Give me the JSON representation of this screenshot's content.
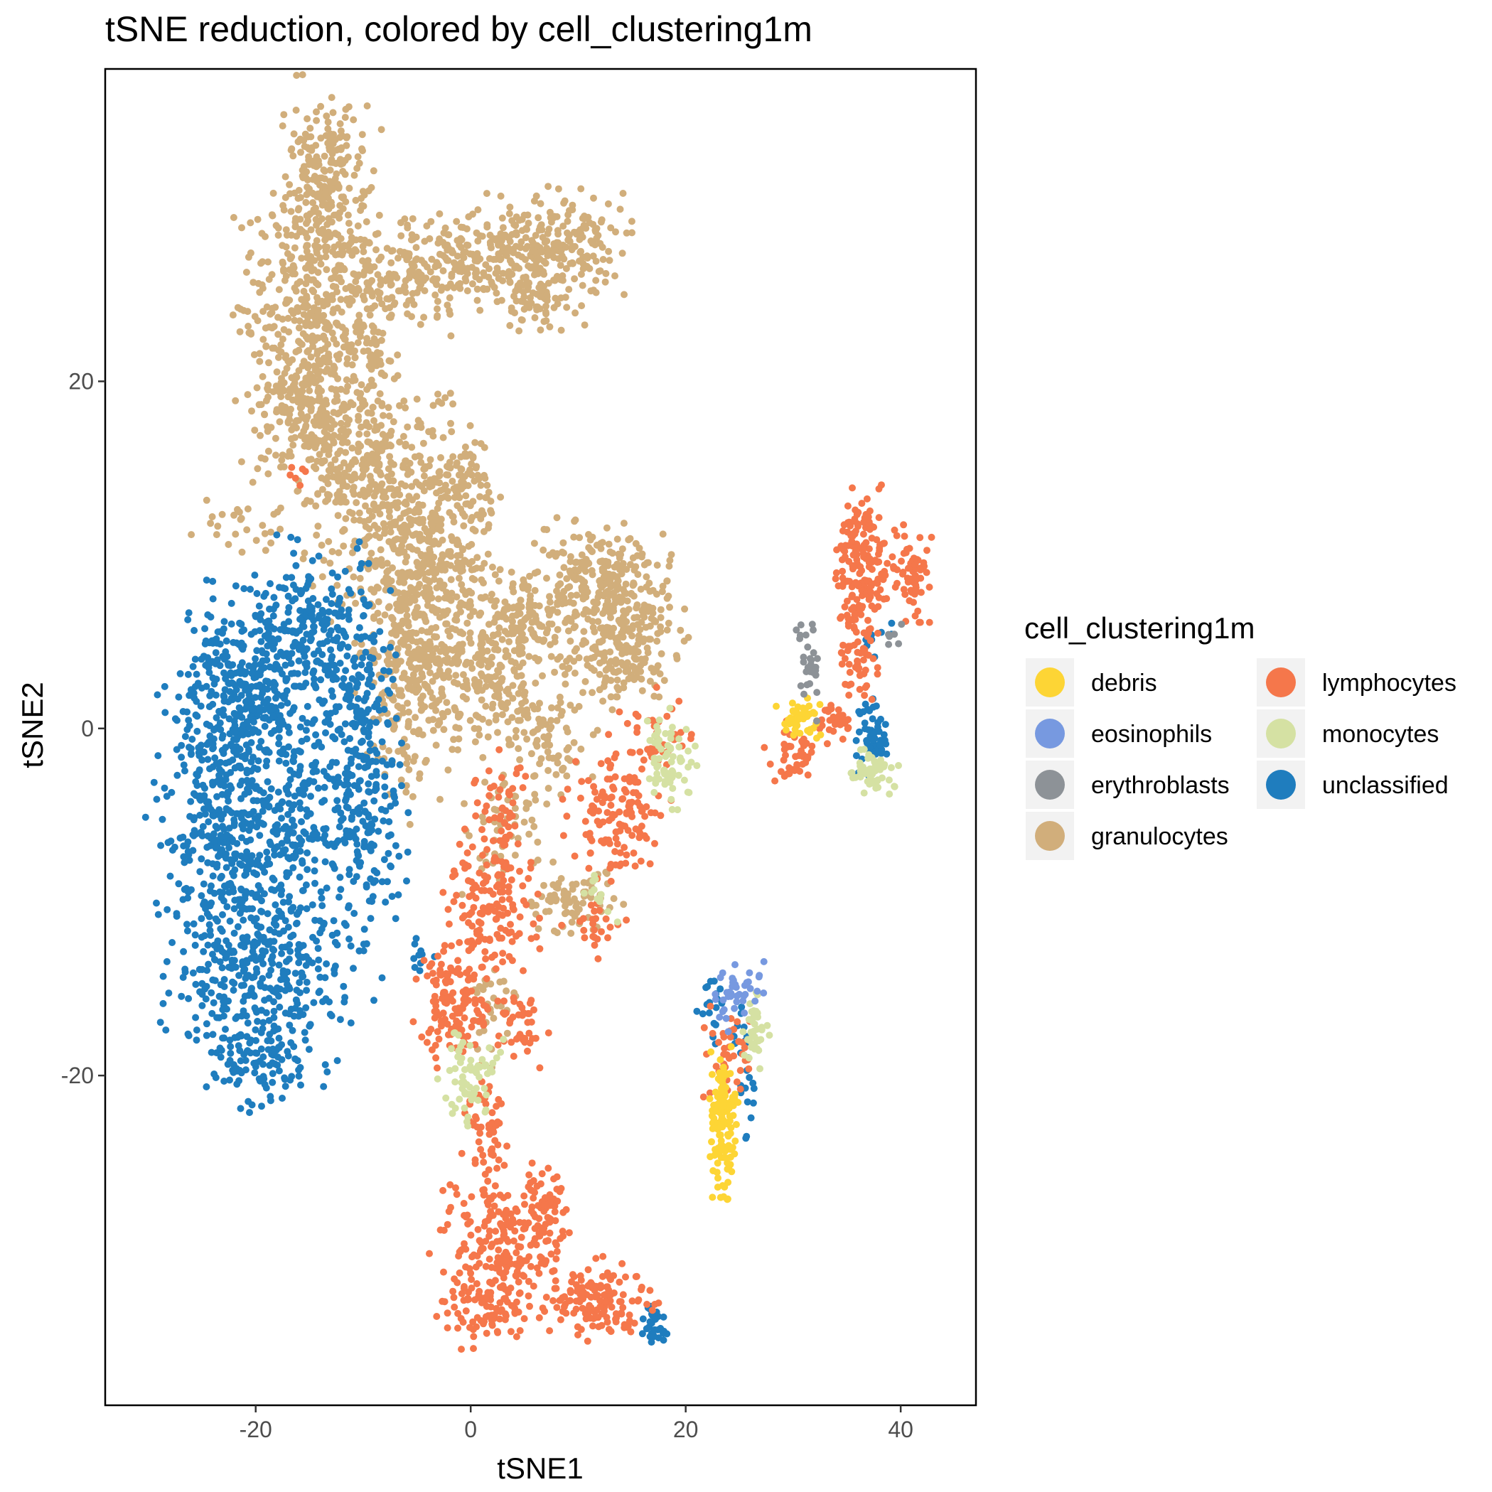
{
  "chart_data": {
    "type": "scatter",
    "title": "tSNE reduction, colored by cell_clustering1m",
    "xlabel": "tSNE1",
    "ylabel": "tSNE2",
    "xlim": [
      -34,
      47
    ],
    "ylim": [
      -39,
      38
    ],
    "x_ticks": [
      -20,
      0,
      20,
      40
    ],
    "x_tick_labels": [
      "-20",
      "0",
      "20",
      "40"
    ],
    "y_ticks": [
      -20,
      0,
      20
    ],
    "y_tick_labels": [
      "-20",
      "0",
      "20"
    ],
    "grid": false,
    "legend": {
      "title": "cell_clustering1m",
      "position": "right",
      "columns": 2,
      "entries": [
        "debris",
        "eosinophils",
        "erythroblasts",
        "granulocytes",
        "lymphocytes",
        "monocytes",
        "unclassified"
      ]
    },
    "colors": {
      "debris": "#FDD535",
      "eosinophils": "#7799E0",
      "erythroblasts": "#8D9297",
      "granulocytes": "#D1AE7B",
      "lymphocytes": "#F5774B",
      "monocytes": "#D5E1A3",
      "unclassified": "#1F7DBE"
    },
    "series": [
      {
        "name": "granulocytes",
        "clusters": [
          {
            "cx": -13.5,
            "cy": 31,
            "sx": 2.0,
            "sy": 2.6,
            "n": 260
          },
          {
            "cx": -15,
            "cy": 24,
            "sx": 3.0,
            "sy": 2.8,
            "n": 330
          },
          {
            "cx": -14,
            "cy": 18,
            "sx": 3.2,
            "sy": 2.4,
            "n": 300
          },
          {
            "cx": -9.5,
            "cy": 21,
            "sx": 1.2,
            "sy": 3.5,
            "n": 110
          },
          {
            "cx": -6,
            "cy": 26,
            "sx": 2.2,
            "sy": 1.4,
            "n": 120
          },
          {
            "cx": 1,
            "cy": 27,
            "sx": 3.0,
            "sy": 1.4,
            "n": 180
          },
          {
            "cx": 8,
            "cy": 28,
            "sx": 3.2,
            "sy": 1.5,
            "n": 200
          },
          {
            "cx": 6.5,
            "cy": 24.8,
            "sx": 2.0,
            "sy": 0.9,
            "n": 60
          },
          {
            "cx": -8,
            "cy": 13,
            "sx": 3.5,
            "sy": 2.8,
            "n": 320
          },
          {
            "cx": -1.5,
            "cy": 14,
            "sx": 1.8,
            "sy": 2.2,
            "n": 120
          },
          {
            "cx": -4,
            "cy": 7.5,
            "sx": 3.0,
            "sy": 3.0,
            "n": 330
          },
          {
            "cx": -6,
            "cy": 2,
            "sx": 2.0,
            "sy": 3.0,
            "n": 150
          },
          {
            "cx": 1,
            "cy": 3,
            "sx": 3.0,
            "sy": 2.0,
            "n": 190
          },
          {
            "cx": 5,
            "cy": 6,
            "sx": 2.5,
            "sy": 1.5,
            "n": 140
          },
          {
            "cx": 11,
            "cy": 8.5,
            "sx": 2.2,
            "sy": 1.8,
            "n": 170
          },
          {
            "cx": 15.5,
            "cy": 7,
            "sx": 2.2,
            "sy": 2.0,
            "n": 170
          },
          {
            "cx": 13,
            "cy": 4,
            "sx": 2.2,
            "sy": 1.5,
            "n": 100
          },
          {
            "cx": 7,
            "cy": -0.5,
            "sx": 2.0,
            "sy": 2.0,
            "n": 90
          },
          {
            "cx": -21,
            "cy": 11.5,
            "sx": 2.0,
            "sy": 0.7,
            "n": 25
          },
          {
            "cx": 9.5,
            "cy": -10,
            "sx": 2.0,
            "sy": 1.0,
            "n": 80
          },
          {
            "cx": 3,
            "cy": -6,
            "sx": 2.0,
            "sy": 1.5,
            "n": 45
          },
          {
            "cx": 2,
            "cy": -16,
            "sx": 1.0,
            "sy": 1.5,
            "n": 30
          }
        ]
      },
      {
        "name": "unclassified",
        "clusters": [
          {
            "cx": -18,
            "cy": -4,
            "sx": 5.0,
            "sy": 5.0,
            "n": 600
          },
          {
            "cx": -23.5,
            "cy": -6,
            "sx": 2.4,
            "sy": 4.5,
            "n": 260
          },
          {
            "cx": -21,
            "cy": 2.5,
            "sx": 3.0,
            "sy": 2.5,
            "n": 220
          },
          {
            "cx": -15,
            "cy": 6,
            "sx": 2.8,
            "sy": 2.0,
            "n": 170
          },
          {
            "cx": -10.5,
            "cy": 0,
            "sx": 1.6,
            "sy": 4.0,
            "n": 160
          },
          {
            "cx": -19,
            "cy": -14,
            "sx": 4.0,
            "sy": 2.5,
            "n": 260
          },
          {
            "cx": -20,
            "cy": -18.5,
            "sx": 2.8,
            "sy": 1.5,
            "n": 120
          },
          {
            "cx": -9,
            "cy": -7,
            "sx": 1.6,
            "sy": 2.0,
            "n": 60
          },
          {
            "cx": 37.5,
            "cy": -0.5,
            "sx": 0.8,
            "sy": 0.9,
            "n": 60
          },
          {
            "cx": 17,
            "cy": -34.5,
            "sx": 0.6,
            "sy": 0.6,
            "n": 30
          },
          {
            "cx": 22.5,
            "cy": -16,
            "sx": 0.7,
            "sy": 1.2,
            "n": 18
          },
          {
            "cx": 25.5,
            "cy": -20,
            "sx": 0.6,
            "sy": 2.0,
            "n": 25
          },
          {
            "cx": 38.5,
            "cy": 5,
            "sx": 1.2,
            "sy": 0.8,
            "n": 8
          },
          {
            "cx": -5,
            "cy": -13,
            "sx": 0.8,
            "sy": 0.6,
            "n": 10
          }
        ]
      },
      {
        "name": "lymphocytes",
        "clusters": [
          {
            "cx": 36.5,
            "cy": 9.5,
            "sx": 1.2,
            "sy": 2.0,
            "n": 170
          },
          {
            "cx": 41,
            "cy": 9,
            "sx": 0.8,
            "sy": 1.3,
            "n": 70
          },
          {
            "cx": 36,
            "cy": 4,
            "sx": 0.9,
            "sy": 1.4,
            "n": 50
          },
          {
            "cx": 30,
            "cy": -1.5,
            "sx": 1.2,
            "sy": 0.8,
            "n": 45
          },
          {
            "cx": 34,
            "cy": 0.5,
            "sx": 1.0,
            "sy": 0.6,
            "n": 30
          },
          {
            "cx": 13.5,
            "cy": -5,
            "sx": 2.0,
            "sy": 1.8,
            "n": 130
          },
          {
            "cx": 17.5,
            "cy": -0.5,
            "sx": 1.8,
            "sy": 1.2,
            "n": 40
          },
          {
            "cx": 2,
            "cy": -10,
            "sx": 2.0,
            "sy": 2.0,
            "n": 140
          },
          {
            "cx": 3,
            "cy": -5,
            "sx": 1.2,
            "sy": 1.5,
            "n": 50
          },
          {
            "cx": -1.5,
            "cy": -16,
            "sx": 1.8,
            "sy": 1.6,
            "n": 130
          },
          {
            "cx": 4.5,
            "cy": -17,
            "sx": 1.2,
            "sy": 1.2,
            "n": 40
          },
          {
            "cx": 1.5,
            "cy": -23,
            "sx": 0.9,
            "sy": 1.8,
            "n": 55
          },
          {
            "cx": 2.5,
            "cy": -30,
            "sx": 2.5,
            "sy": 2.0,
            "n": 200
          },
          {
            "cx": 7,
            "cy": -28,
            "sx": 1.0,
            "sy": 1.5,
            "n": 70
          },
          {
            "cx": 1,
            "cy": -33.5,
            "sx": 1.8,
            "sy": 1.0,
            "n": 70
          },
          {
            "cx": 12,
            "cy": -33,
            "sx": 2.5,
            "sy": 1.0,
            "n": 140
          },
          {
            "cx": 24,
            "cy": -19,
            "sx": 1.0,
            "sy": 1.5,
            "n": 45
          },
          {
            "cx": 11,
            "cy": -11.5,
            "sx": 1.5,
            "sy": 0.8,
            "n": 25
          },
          {
            "cx": -16,
            "cy": 14.5,
            "sx": 0.5,
            "sy": 0.3,
            "n": 6
          }
        ]
      },
      {
        "name": "monocytes",
        "clusters": [
          {
            "cx": 18.5,
            "cy": -1.8,
            "sx": 1.2,
            "sy": 1.2,
            "n": 75
          },
          {
            "cx": 37.5,
            "cy": -2.5,
            "sx": 1.0,
            "sy": 0.6,
            "n": 55
          },
          {
            "cx": 0,
            "cy": -20,
            "sx": 1.3,
            "sy": 1.2,
            "n": 70
          },
          {
            "cx": 26.5,
            "cy": -17.5,
            "sx": 0.6,
            "sy": 1.0,
            "n": 40
          },
          {
            "cx": 12,
            "cy": -9.5,
            "sx": 1.0,
            "sy": 0.8,
            "n": 12
          }
        ]
      },
      {
        "name": "debris",
        "clusters": [
          {
            "cx": 23.5,
            "cy": -22.8,
            "sx": 0.6,
            "sy": 2.0,
            "n": 130
          },
          {
            "cx": 30.5,
            "cy": 0.5,
            "sx": 0.8,
            "sy": 0.6,
            "n": 45
          }
        ]
      },
      {
        "name": "erythroblasts",
        "clusters": [
          {
            "cx": 31.5,
            "cy": 3.5,
            "sx": 0.5,
            "sy": 1.2,
            "n": 30
          },
          {
            "cx": 39,
            "cy": 5.5,
            "sx": 0.6,
            "sy": 0.4,
            "n": 6
          }
        ]
      },
      {
        "name": "eosinophils",
        "clusters": [
          {
            "cx": 25,
            "cy": -15,
            "sx": 1.0,
            "sy": 0.7,
            "n": 35
          },
          {
            "cx": 23.5,
            "cy": -16.5,
            "sx": 0.5,
            "sy": 0.5,
            "n": 8
          }
        ]
      }
    ]
  }
}
